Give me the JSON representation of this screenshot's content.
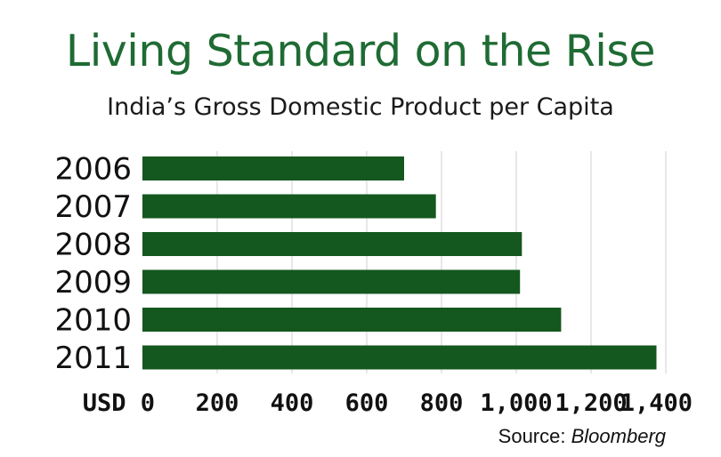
{
  "chart_data": {
    "type": "bar",
    "orientation": "horizontal",
    "title": "Living Standard on the Rise",
    "subtitle": "India’s Gross Domestic Product per Capita",
    "categories": [
      "2006",
      "2007",
      "2008",
      "2009",
      "2010",
      "2011"
    ],
    "values": [
      700,
      785,
      1015,
      1010,
      1120,
      1375
    ],
    "xlim": [
      0,
      1400
    ],
    "x_ticks": [
      0,
      200,
      400,
      600,
      800,
      1000,
      1200,
      1400
    ],
    "x_tick_labels": [
      "USD 0",
      "200",
      "400",
      "600",
      "800",
      "1,000",
      "1,200",
      "1,400"
    ],
    "grid": true,
    "bar_color": "#14581f",
    "source_label": "Source:",
    "source_name": "Bloomberg"
  },
  "colors": {
    "title": "#1f6b34",
    "bar": "#14581f",
    "grid": "#cfcfcf"
  }
}
